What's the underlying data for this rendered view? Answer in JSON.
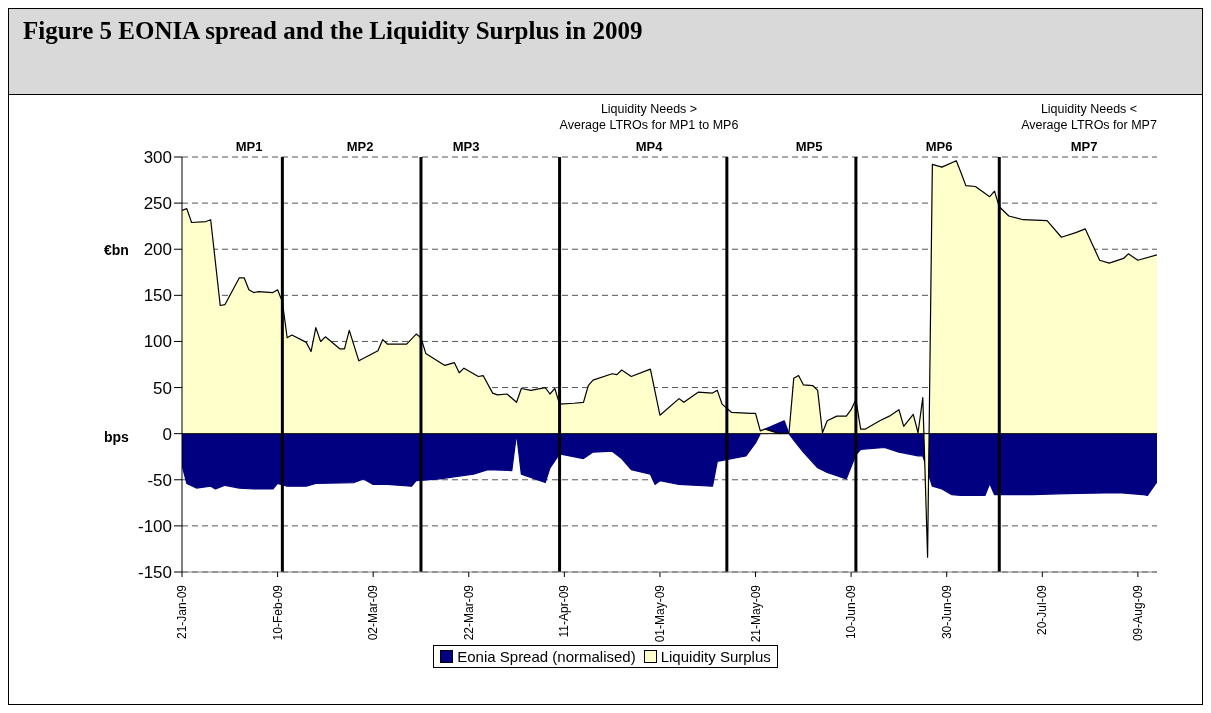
{
  "chart_data": {
    "type": "area",
    "title": "Figure 5 EONIA spread and the Liquidity Surplus in 2009",
    "ylabel": "€bn",
    "annotations": [
      "Liquidity Needs >\nAverage LTROs for MP1 to MP6",
      "Liquidity Needs <\nAverage LTROs for MP7",
      "bps",
      "MP1",
      "MP2",
      "MP3",
      "MP4",
      "MP5",
      "MP6",
      "MP7"
    ],
    "series": [
      {
        "name": "Eonia Spread (normalised)",
        "color": "#000080",
        "x": [
          "2009-01-21",
          "2009-01-22",
          "2009-01-24",
          "2009-01-27",
          "2009-01-28",
          "2009-01-30",
          "2009-02-02",
          "2009-02-05",
          "2009-02-09",
          "2009-02-10",
          "2009-02-12",
          "2009-02-16",
          "2009-02-18",
          "2009-02-26",
          "2009-02-28",
          "2009-03-02",
          "2009-03-05",
          "2009-03-10",
          "2009-03-11",
          "2009-03-16",
          "2009-03-20",
          "2009-03-23",
          "2009-03-26",
          "2009-03-31",
          "2009-04-01",
          "2009-04-02",
          "2009-04-07",
          "2009-04-08",
          "2009-04-10",
          "2009-04-15",
          "2009-04-17",
          "2009-04-21",
          "2009-04-23",
          "2009-04-25",
          "2009-04-29",
          "2009-04-30",
          "2009-05-01",
          "2009-05-05",
          "2009-05-12",
          "2009-05-13",
          "2009-05-16",
          "2009-05-19",
          "2009-05-21",
          "2009-05-22",
          "2009-05-23",
          "2009-05-27",
          "2009-05-28",
          "2009-05-29",
          "2009-05-31",
          "2009-06-03",
          "2009-06-05",
          "2009-06-09",
          "2009-06-11",
          "2009-06-12",
          "2009-06-17",
          "2009-06-20",
          "2009-06-24",
          "2009-06-25",
          "2009-06-27",
          "2009-06-29",
          "2009-07-01",
          "2009-07-03",
          "2009-07-08",
          "2009-07-09",
          "2009-07-10",
          "2009-07-18",
          "2009-07-25",
          "2009-08-05",
          "2009-08-10",
          "2009-08-11",
          "2009-08-13"
        ],
        "values": [
          -34,
          -54,
          -59,
          -57,
          -60,
          -56,
          -59,
          -60,
          -60,
          -54,
          -57,
          -57,
          -54,
          -53,
          -49,
          -55,
          -55,
          -57,
          -51,
          -49,
          -46,
          -44,
          -39,
          -40,
          0,
          -44,
          -53,
          -37,
          -22,
          -27,
          -20,
          -19,
          -27,
          -39,
          -44,
          -55,
          -51,
          -55,
          -57,
          -30,
          -27,
          -24,
          -10,
          0,
          5,
          14,
          0,
          -7,
          -20,
          -37,
          -42,
          -49,
          -23,
          -17,
          -15,
          -20,
          -24,
          -24,
          -57,
          -60,
          -66,
          -67,
          -67,
          -54,
          -66,
          -66,
          -65,
          -64,
          -66,
          -67,
          -52
        ]
      },
      {
        "name": "Liquidity Surplus",
        "color": "#ffffcc",
        "x": [
          "2009-01-21",
          "2009-01-22",
          "2009-01-23",
          "2009-01-26",
          "2009-01-27",
          "2009-01-29",
          "2009-01-30",
          "2009-02-02",
          "2009-02-03",
          "2009-02-04",
          "2009-02-05",
          "2009-02-06",
          "2009-02-09",
          "2009-02-10",
          "2009-02-11",
          "2009-02-12",
          "2009-02-13",
          "2009-02-16",
          "2009-02-17",
          "2009-02-18",
          "2009-02-19",
          "2009-02-20",
          "2009-02-23",
          "2009-02-24",
          "2009-02-25",
          "2009-02-27",
          "2009-03-03",
          "2009-03-04",
          "2009-03-05",
          "2009-03-09",
          "2009-03-11",
          "2009-03-12",
          "2009-03-13",
          "2009-03-17",
          "2009-03-19",
          "2009-03-20",
          "2009-03-21",
          "2009-03-24",
          "2009-03-25",
          "2009-03-27",
          "2009-03-28",
          "2009-03-30",
          "2009-04-01",
          "2009-04-02",
          "2009-04-04",
          "2009-04-07",
          "2009-04-08",
          "2009-04-09",
          "2009-04-10",
          "2009-04-13",
          "2009-04-15",
          "2009-04-16",
          "2009-04-17",
          "2009-04-21",
          "2009-04-22",
          "2009-04-23",
          "2009-04-25",
          "2009-04-29",
          "2009-05-01",
          "2009-05-05",
          "2009-05-06",
          "2009-05-09",
          "2009-05-12",
          "2009-05-13",
          "2009-05-14",
          "2009-05-16",
          "2009-05-20",
          "2009-05-21",
          "2009-05-22",
          "2009-05-23",
          "2009-05-26",
          "2009-05-28",
          "2009-05-29",
          "2009-05-30",
          "2009-05-31",
          "2009-06-02",
          "2009-06-03",
          "2009-06-04",
          "2009-06-05",
          "2009-06-07",
          "2009-06-09",
          "2009-06-10",
          "2009-06-11",
          "2009-06-12",
          "2009-06-13",
          "2009-06-16",
          "2009-06-18",
          "2009-06-20",
          "2009-06-21",
          "2009-06-23",
          "2009-06-24",
          "2009-06-25",
          "2009-06-26",
          "2009-06-27",
          "2009-06-29",
          "2009-07-02",
          "2009-07-03",
          "2009-07-04",
          "2009-07-06",
          "2009-07-09",
          "2009-07-10",
          "2009-07-11",
          "2009-07-13",
          "2009-07-16",
          "2009-07-21",
          "2009-07-24",
          "2009-07-27",
          "2009-07-29",
          "2009-08-01",
          "2009-08-03",
          "2009-08-06",
          "2009-08-07",
          "2009-08-09",
          "2009-08-13"
        ],
        "values": [
          242,
          244,
          229,
          230,
          232,
          139,
          140,
          169,
          169,
          156,
          153,
          154,
          153,
          156,
          143,
          104,
          107,
          99,
          89,
          115,
          100,
          105,
          92,
          92,
          112,
          79,
          90,
          102,
          97,
          97,
          108,
          104,
          87,
          74,
          77,
          66,
          71,
          62,
          63,
          44,
          42,
          43,
          34,
          49,
          47,
          50,
          43,
          49,
          32,
          33,
          34,
          52,
          58,
          65,
          64,
          69,
          62,
          70,
          20,
          38,
          34,
          45,
          44,
          47,
          32,
          23,
          22,
          22,
          3,
          5,
          0,
          1,
          60,
          63,
          53,
          52,
          47,
          1,
          14,
          19,
          19,
          26,
          37,
          5,
          5,
          14,
          19,
          26,
          8,
          21,
          1,
          39,
          -134,
          292,
          289,
          296,
          283,
          269,
          268,
          257,
          263,
          246,
          236,
          232,
          231,
          213,
          218,
          222,
          188,
          185,
          190,
          195,
          188,
          194
        ]
      }
    ],
    "xlim": [
      "2009-01-21",
      "2009-08-13"
    ],
    "xticks": [
      {
        "value": "2009-01-21",
        "label": "21-Jan-09"
      },
      {
        "value": "2009-02-10",
        "label": "10-Feb-09"
      },
      {
        "value": "2009-03-02",
        "label": "02-Mar-09"
      },
      {
        "value": "2009-03-22",
        "label": "22-Mar-09"
      },
      {
        "value": "2009-04-11",
        "label": "11-Apr-09"
      },
      {
        "value": "2009-05-01",
        "label": "01-May-09"
      },
      {
        "value": "2009-05-21",
        "label": "21-May-09"
      },
      {
        "value": "2009-06-10",
        "label": "10-Jun-09"
      },
      {
        "value": "2009-06-30",
        "label": "30-Jun-09"
      },
      {
        "value": "2009-07-20",
        "label": "20-Jul-09"
      },
      {
        "value": "2009-08-09",
        "label": "09-Aug-09"
      }
    ],
    "ylim": [
      -150,
      300
    ],
    "yticks": [
      -150,
      -100,
      -50,
      0,
      50,
      100,
      150,
      200,
      250,
      300
    ],
    "grid": "y",
    "legend": "bottom",
    "ref_lines": [
      {
        "axis": "x",
        "value": "2009-02-11",
        "color": "#000000"
      },
      {
        "axis": "x",
        "value": "2009-03-12",
        "color": "#000000"
      },
      {
        "axis": "x",
        "value": "2009-04-10",
        "color": "#000000"
      },
      {
        "axis": "x",
        "value": "2009-05-15",
        "color": "#000000"
      },
      {
        "axis": "x",
        "value": "2009-06-11",
        "color": "#000000"
      },
      {
        "axis": "x",
        "value": "2009-07-11",
        "color": "#000000"
      }
    ]
  }
}
